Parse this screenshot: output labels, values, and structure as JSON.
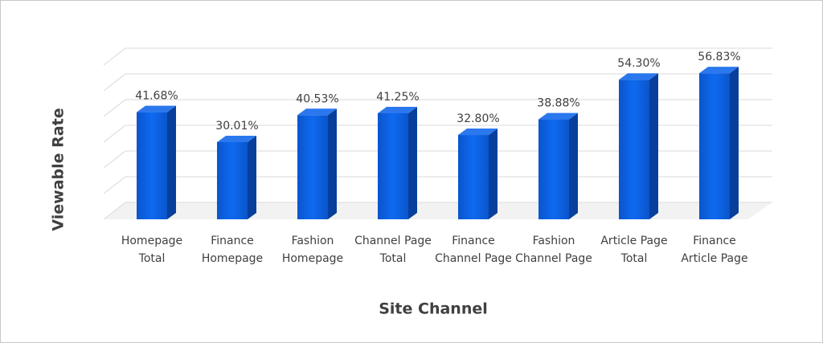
{
  "chart_data": {
    "type": "bar3d",
    "xlabel": "Site Channel",
    "ylabel": "Viewable Rate",
    "categories": [
      "Homepage Total",
      "Finance Homepage",
      "Fashion Homepage",
      "Channel Page Total",
      "Finance Channel Page",
      "Fashion Channel Page",
      "Article Page Total",
      "Finance Article Page"
    ],
    "values": [
      41.68,
      30.01,
      40.53,
      41.25,
      32.8,
      38.88,
      54.3,
      56.83
    ],
    "value_labels": [
      "41.68%",
      "30.01%",
      "40.53%",
      "41.25%",
      "32.80%",
      "38.88%",
      "54.30%",
      "56.83%"
    ],
    "color": "#0b5fdd",
    "ylim": [
      0,
      60
    ],
    "yticks": [
      0,
      10,
      20,
      30,
      40,
      50,
      60
    ],
    "grid": true
  }
}
